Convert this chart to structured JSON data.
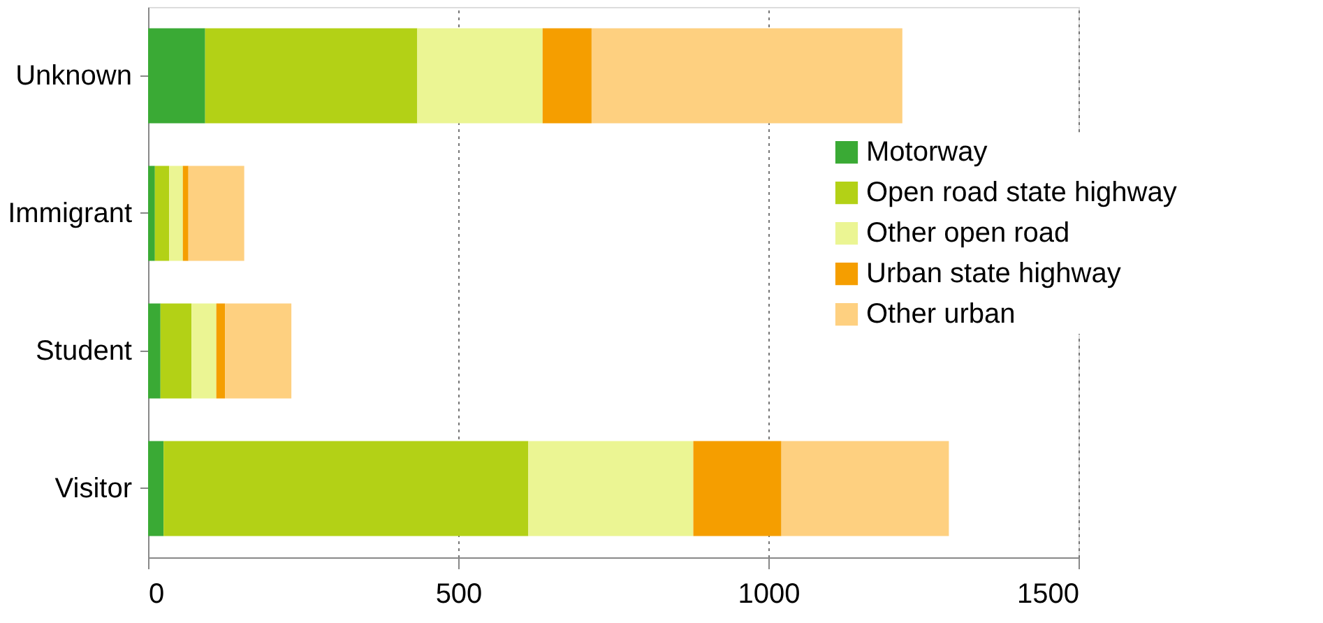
{
  "chart_data": {
    "type": "bar",
    "orientation": "horizontal",
    "stacked": true,
    "categories": [
      "Unknown",
      "Immigrant",
      "Student",
      "Visitor"
    ],
    "series": [
      {
        "name": "Motorway",
        "color": "#3aaa35",
        "values": [
          92,
          11,
          20,
          25
        ]
      },
      {
        "name": "Open road state highway",
        "color": "#b3d116",
        "values": [
          342,
          23,
          50,
          588
        ]
      },
      {
        "name": "Other open road",
        "color": "#ebf593",
        "values": [
          202,
          22,
          40,
          266
        ]
      },
      {
        "name": "Urban state highway",
        "color": "#f59e00",
        "values": [
          79,
          9,
          14,
          142
        ]
      },
      {
        "name": "Other urban",
        "color": "#fed080",
        "values": [
          501,
          90,
          107,
          270
        ]
      }
    ],
    "xlim": [
      0,
      1500
    ],
    "xticks": [
      0,
      500,
      1000,
      1500
    ],
    "grid": "x",
    "legend": "right"
  }
}
